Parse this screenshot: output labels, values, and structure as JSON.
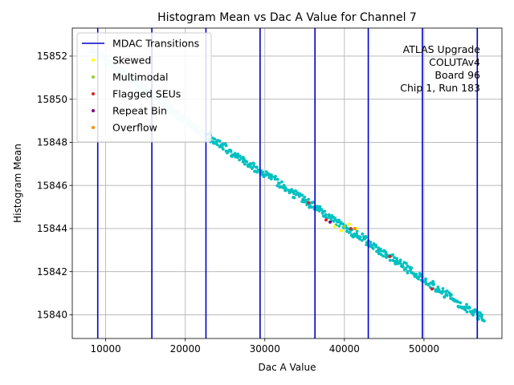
{
  "chart_data": {
    "type": "scatter",
    "title": "Histogram Mean vs Dac A Value for Channel 7",
    "xlabel": "Dac A Value",
    "ylabel": "Histogram Mean",
    "xlim": [
      5800,
      59800
    ],
    "ylim": [
      15838.9,
      15853.3
    ],
    "xticks": [
      10000,
      20000,
      30000,
      40000,
      50000
    ],
    "yticks": [
      15840,
      15842,
      15844,
      15846,
      15848,
      15850,
      15852
    ],
    "grid": true,
    "legend": {
      "placement": "top-left",
      "entries": [
        {
          "name": "MDAC Transitions",
          "kind": "line",
          "color": "#0000cc"
        },
        {
          "name": "Skewed",
          "kind": "marker",
          "color": "#ffff00"
        },
        {
          "name": "Multimodal",
          "kind": "marker",
          "color": "#9acd32"
        },
        {
          "name": "Flagged SEUs",
          "kind": "marker",
          "color": "#d62728"
        },
        {
          "name": "Repeat Bin",
          "kind": "marker",
          "color": "#800080"
        },
        {
          "name": "Overflow",
          "kind": "marker",
          "color": "#ff8c00"
        }
      ]
    },
    "annotation": {
      "placement": "top-right",
      "lines": [
        "ATLAS Upgrade",
        "COLUTAv4",
        "Board 96",
        "Chip 1, Run 183"
      ]
    },
    "mdac_transitions": {
      "name": "MDAC Transitions",
      "color": "#0000cc",
      "x": [
        9000,
        15800,
        22600,
        29400,
        36300,
        43000,
        49800,
        56700
      ]
    },
    "segments": [
      {
        "x": [
          8000,
          22800
        ],
        "y": [
          15852.4,
          15848.2
        ],
        "color": "#c9f2f2"
      },
      {
        "x": [
          22800,
          57500
        ],
        "y": [
          15848.3,
          15839.8
        ],
        "color": "#00c0c0"
      }
    ],
    "flagged": [
      {
        "category": "Skewed",
        "color": "#ffff00",
        "points": [
          [
            38800,
            15844.1
          ],
          [
            39600,
            15843.9
          ],
          [
            40600,
            15844.2
          ],
          [
            41500,
            15844.0
          ]
        ]
      },
      {
        "category": "Multimodal",
        "color": "#9acd32",
        "points": [
          [
            40000,
            15844.1
          ]
        ]
      },
      {
        "category": "Flagged SEUs",
        "color": "#d62728",
        "points": [
          [
            35500,
            15845.2
          ],
          [
            37700,
            15844.4
          ],
          [
            40800,
            15844.0
          ],
          [
            45700,
            15842.7
          ],
          [
            51000,
            15841.2
          ]
        ]
      },
      {
        "category": "Repeat Bin",
        "color": "#800080",
        "points": [
          [
            38200,
            15844.3
          ]
        ]
      },
      {
        "category": "Overflow",
        "color": "#ff8c00",
        "points": [
          [
            41300,
            15844.0
          ]
        ]
      }
    ]
  }
}
